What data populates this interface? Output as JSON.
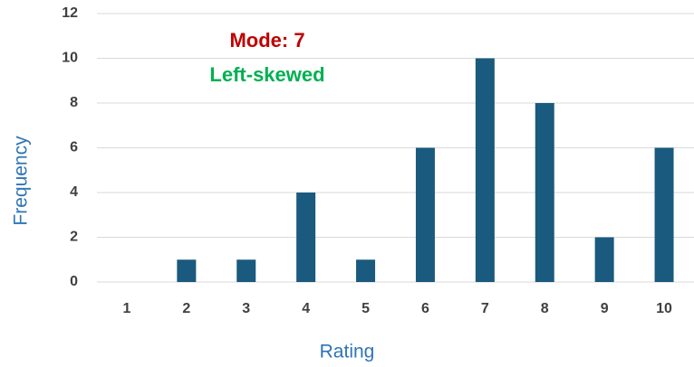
{
  "chart_data": {
    "type": "bar",
    "x_label": "Rating",
    "y_label": "Frequency",
    "annotations": [
      {
        "text": "Mode: 7",
        "color": "#c00000"
      },
      {
        "text": "Left-skewed",
        "color": "#00b050"
      }
    ],
    "categories": [
      "1",
      "2",
      "3",
      "4",
      "5",
      "6",
      "7",
      "8",
      "9",
      "10"
    ],
    "values": [
      0,
      1,
      1,
      4,
      1,
      6,
      10,
      8,
      2,
      6
    ],
    "color": "#1a5a7e",
    "ylim": [
      0,
      12
    ],
    "yticks": [
      0,
      2,
      4,
      6,
      8,
      10,
      12
    ],
    "grid": true
  }
}
